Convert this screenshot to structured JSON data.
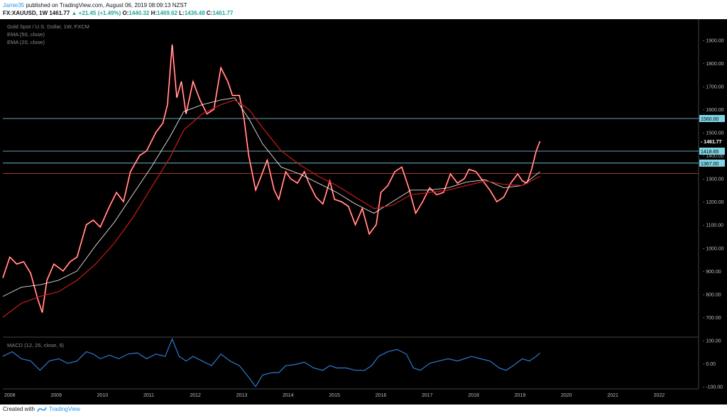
{
  "header": {
    "author": "Jamie35",
    "publish_text": " published on TradingView.com, August 06, 2019 08:09:13 NZST"
  },
  "symbol_bar": {
    "symbol": "FX:XAUUSD, 1W",
    "last": "1461.77",
    "arrow": "▲",
    "change": "+21.45 (+1.49%)",
    "o_label": "O:",
    "o": "1440.32",
    "h_label": "H:",
    "h": "1469.62",
    "l_label": "L:",
    "l": "1436.48",
    "c_label": "C:",
    "c": "1461.77"
  },
  "legend": {
    "title": "Gold Spot / U.S. Dollar, 1W, FXCM",
    "ema50": "EMA (50, close)",
    "ema20": "EMA (20, close)",
    "macd": "MACD (12, 26, close, 9)"
  },
  "footer": {
    "created_with": "Created with",
    "brand": "TradingView"
  },
  "colors": {
    "background": "#000000",
    "candle_up": "#ffffff",
    "candle_down": "#ff0000",
    "ema50": "#ffffff",
    "ema20": "#cc1a1a",
    "macd": "#2e7ad1",
    "level_line": "#7fd4e6",
    "red_level": "#c0392b",
    "axis_text": "#bbbbbb"
  },
  "chart_data": {
    "type": "line",
    "title": "Gold Spot / U.S. Dollar, 1W, FXCM",
    "y_ticks": [
      1900,
      1800,
      1700,
      1600,
      1500,
      1400,
      1300,
      1200,
      1100,
      1000,
      900,
      800,
      700
    ],
    "y_tick_labels": [
      "1900.00",
      "1800.00",
      "1700.00",
      "1600.00",
      "1500.00",
      "1400.00",
      "1300.00",
      "1200.00",
      "1100.00",
      "1000.00",
      "900.00",
      "800.00",
      "700.00"
    ],
    "ylim": [
      620,
      1990
    ],
    "x_labels": [
      "2008",
      "2009",
      "2010",
      "2011",
      "2012",
      "2013",
      "2014",
      "2015",
      "2016",
      "2017",
      "2018",
      "2019",
      "2020",
      "2021",
      "2022"
    ],
    "xlim": [
      2008.0,
      2023.0
    ],
    "horizontal_levels": [
      {
        "value": 1560.0,
        "label": "1560.00"
      },
      {
        "value": 1418.65,
        "label": "1418.65"
      },
      {
        "value": 1367.0,
        "label": "1367.00"
      }
    ],
    "red_level": 1322,
    "last_price": {
      "value": 1461.77,
      "label": "- 1461.77"
    },
    "series": [
      {
        "name": "Gold Spot / U.S. Dollar",
        "points": [
          [
            2008.0,
            870
          ],
          [
            2008.15,
            960
          ],
          [
            2008.3,
            930
          ],
          [
            2008.45,
            940
          ],
          [
            2008.6,
            890
          ],
          [
            2008.75,
            780
          ],
          [
            2008.85,
            720
          ],
          [
            2008.95,
            860
          ],
          [
            2009.1,
            930
          ],
          [
            2009.3,
            900
          ],
          [
            2009.45,
            940
          ],
          [
            2009.6,
            960
          ],
          [
            2009.8,
            1100
          ],
          [
            2009.95,
            1120
          ],
          [
            2010.1,
            1090
          ],
          [
            2010.3,
            1180
          ],
          [
            2010.45,
            1240
          ],
          [
            2010.6,
            1200
          ],
          [
            2010.75,
            1330
          ],
          [
            2010.95,
            1400
          ],
          [
            2011.1,
            1420
          ],
          [
            2011.3,
            1500
          ],
          [
            2011.45,
            1540
          ],
          [
            2011.55,
            1620
          ],
          [
            2011.65,
            1880
          ],
          [
            2011.75,
            1650
          ],
          [
            2011.85,
            1720
          ],
          [
            2011.95,
            1580
          ],
          [
            2012.1,
            1720
          ],
          [
            2012.25,
            1640
          ],
          [
            2012.4,
            1580
          ],
          [
            2012.55,
            1600
          ],
          [
            2012.7,
            1780
          ],
          [
            2012.85,
            1720
          ],
          [
            2012.95,
            1660
          ],
          [
            2013.1,
            1660
          ],
          [
            2013.2,
            1560
          ],
          [
            2013.3,
            1400
          ],
          [
            2013.45,
            1250
          ],
          [
            2013.55,
            1300
          ],
          [
            2013.7,
            1380
          ],
          [
            2013.85,
            1250
          ],
          [
            2013.95,
            1210
          ],
          [
            2014.1,
            1330
          ],
          [
            2014.2,
            1300
          ],
          [
            2014.35,
            1280
          ],
          [
            2014.5,
            1330
          ],
          [
            2014.6,
            1280
          ],
          [
            2014.75,
            1220
          ],
          [
            2014.9,
            1190
          ],
          [
            2015.05,
            1290
          ],
          [
            2015.15,
            1210
          ],
          [
            2015.3,
            1200
          ],
          [
            2015.45,
            1180
          ],
          [
            2015.6,
            1100
          ],
          [
            2015.75,
            1170
          ],
          [
            2015.9,
            1060
          ],
          [
            2016.05,
            1100
          ],
          [
            2016.15,
            1240
          ],
          [
            2016.3,
            1270
          ],
          [
            2016.45,
            1330
          ],
          [
            2016.6,
            1350
          ],
          [
            2016.75,
            1260
          ],
          [
            2016.9,
            1150
          ],
          [
            2017.05,
            1200
          ],
          [
            2017.2,
            1260
          ],
          [
            2017.35,
            1230
          ],
          [
            2017.5,
            1240
          ],
          [
            2017.65,
            1320
          ],
          [
            2017.8,
            1280
          ],
          [
            2017.95,
            1300
          ],
          [
            2018.05,
            1340
          ],
          [
            2018.2,
            1330
          ],
          [
            2018.35,
            1290
          ],
          [
            2018.5,
            1250
          ],
          [
            2018.65,
            1200
          ],
          [
            2018.8,
            1220
          ],
          [
            2018.95,
            1280
          ],
          [
            2019.1,
            1320
          ],
          [
            2019.2,
            1290
          ],
          [
            2019.3,
            1280
          ],
          [
            2019.4,
            1340
          ],
          [
            2019.5,
            1420
          ],
          [
            2019.58,
            1461.77
          ]
        ]
      },
      {
        "name": "EMA (50, close)",
        "points": [
          [
            2008.0,
            790
          ],
          [
            2008.4,
            830
          ],
          [
            2008.8,
            840
          ],
          [
            2009.2,
            860
          ],
          [
            2009.6,
            900
          ],
          [
            2010.0,
            1010
          ],
          [
            2010.4,
            1110
          ],
          [
            2010.8,
            1230
          ],
          [
            2011.2,
            1350
          ],
          [
            2011.6,
            1480
          ],
          [
            2011.9,
            1590
          ],
          [
            2012.3,
            1620
          ],
          [
            2012.7,
            1640
          ],
          [
            2013.0,
            1650
          ],
          [
            2013.3,
            1560
          ],
          [
            2013.6,
            1450
          ],
          [
            2014.0,
            1350
          ],
          [
            2014.4,
            1320
          ],
          [
            2014.8,
            1280
          ],
          [
            2015.2,
            1240
          ],
          [
            2015.6,
            1190
          ],
          [
            2016.0,
            1150
          ],
          [
            2016.4,
            1200
          ],
          [
            2016.8,
            1250
          ],
          [
            2017.2,
            1250
          ],
          [
            2017.6,
            1260
          ],
          [
            2018.0,
            1285
          ],
          [
            2018.4,
            1295
          ],
          [
            2018.8,
            1260
          ],
          [
            2019.2,
            1270
          ],
          [
            2019.58,
            1330
          ]
        ]
      },
      {
        "name": "EMA (20, close)",
        "points": [
          [
            2008.0,
            700
          ],
          [
            2008.4,
            760
          ],
          [
            2008.8,
            790
          ],
          [
            2009.2,
            810
          ],
          [
            2009.6,
            860
          ],
          [
            2010.0,
            930
          ],
          [
            2010.4,
            1020
          ],
          [
            2010.8,
            1130
          ],
          [
            2011.2,
            1260
          ],
          [
            2011.6,
            1390
          ],
          [
            2011.9,
            1510
          ],
          [
            2012.3,
            1580
          ],
          [
            2012.7,
            1620
          ],
          [
            2013.0,
            1640
          ],
          [
            2013.3,
            1600
          ],
          [
            2013.6,
            1520
          ],
          [
            2014.0,
            1420
          ],
          [
            2014.4,
            1360
          ],
          [
            2014.8,
            1310
          ],
          [
            2015.2,
            1270
          ],
          [
            2015.6,
            1220
          ],
          [
            2016.0,
            1170
          ],
          [
            2016.4,
            1185
          ],
          [
            2016.8,
            1230
          ],
          [
            2017.2,
            1240
          ],
          [
            2017.6,
            1250
          ],
          [
            2018.0,
            1270
          ],
          [
            2018.4,
            1290
          ],
          [
            2018.8,
            1275
          ],
          [
            2019.2,
            1270
          ],
          [
            2019.58,
            1310
          ]
        ]
      }
    ],
    "macd": {
      "name": "MACD (12, 26, close, 9)",
      "y_ticks": [
        100,
        0,
        -100
      ],
      "y_tick_labels": [
        "100.00",
        "0.00",
        "-100.00"
      ],
      "ylim": [
        -110,
        110
      ],
      "points": [
        [
          2008.0,
          30
        ],
        [
          2008.2,
          50
        ],
        [
          2008.4,
          20
        ],
        [
          2008.6,
          10
        ],
        [
          2008.8,
          -30
        ],
        [
          2009.0,
          10
        ],
        [
          2009.2,
          20
        ],
        [
          2009.4,
          0
        ],
        [
          2009.6,
          10
        ],
        [
          2009.8,
          50
        ],
        [
          2009.95,
          40
        ],
        [
          2010.1,
          20
        ],
        [
          2010.3,
          35
        ],
        [
          2010.5,
          20
        ],
        [
          2010.7,
          40
        ],
        [
          2010.9,
          45
        ],
        [
          2011.1,
          20
        ],
        [
          2011.3,
          40
        ],
        [
          2011.5,
          30
        ],
        [
          2011.65,
          105
        ],
        [
          2011.8,
          30
        ],
        [
          2011.95,
          10
        ],
        [
          2012.1,
          30
        ],
        [
          2012.3,
          10
        ],
        [
          2012.5,
          -10
        ],
        [
          2012.7,
          40
        ],
        [
          2012.9,
          10
        ],
        [
          2013.1,
          -10
        ],
        [
          2013.3,
          -60
        ],
        [
          2013.45,
          -100
        ],
        [
          2013.6,
          -50
        ],
        [
          2013.8,
          -40
        ],
        [
          2013.95,
          -40
        ],
        [
          2014.1,
          -10
        ],
        [
          2014.3,
          -5
        ],
        [
          2014.5,
          5
        ],
        [
          2014.7,
          -20
        ],
        [
          2014.9,
          -30
        ],
        [
          2015.05,
          -10
        ],
        [
          2015.2,
          -20
        ],
        [
          2015.4,
          -20
        ],
        [
          2015.6,
          -30
        ],
        [
          2015.8,
          -30
        ],
        [
          2015.95,
          -10
        ],
        [
          2016.1,
          30
        ],
        [
          2016.3,
          50
        ],
        [
          2016.5,
          60
        ],
        [
          2016.7,
          40
        ],
        [
          2016.85,
          -20
        ],
        [
          2017.0,
          -30
        ],
        [
          2017.2,
          0
        ],
        [
          2017.4,
          10
        ],
        [
          2017.6,
          20
        ],
        [
          2017.8,
          10
        ],
        [
          2017.95,
          20
        ],
        [
          2018.1,
          30
        ],
        [
          2018.3,
          20
        ],
        [
          2018.5,
          10
        ],
        [
          2018.7,
          -20
        ],
        [
          2018.85,
          -30
        ],
        [
          2019.0,
          -10
        ],
        [
          2019.2,
          20
        ],
        [
          2019.35,
          10
        ],
        [
          2019.5,
          30
        ],
        [
          2019.58,
          45
        ]
      ]
    }
  }
}
